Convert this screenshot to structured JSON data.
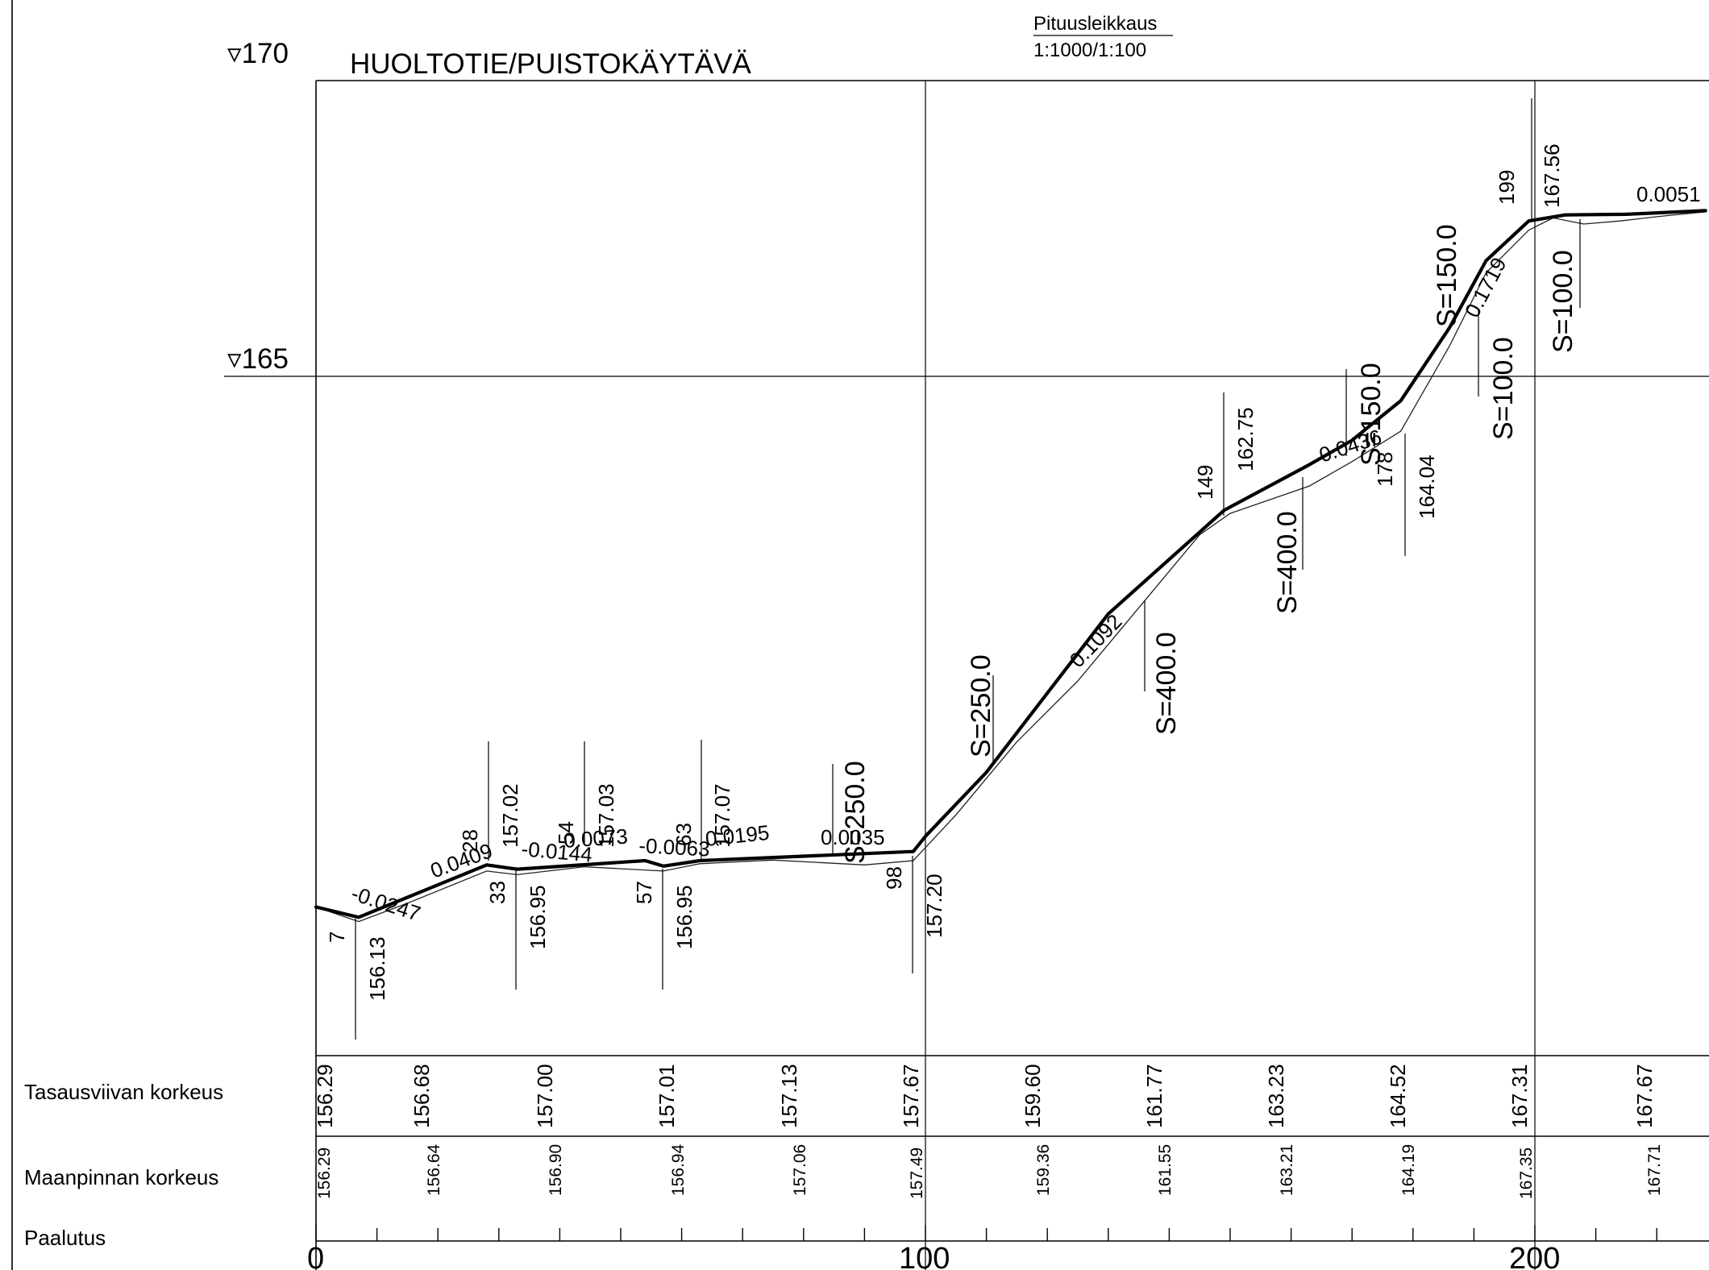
{
  "drawing_title": "HUOLTOTIE/PUISTOKÄYTÄVÄ",
  "stamp": {
    "line1": "Pituusleikkaus",
    "line2": "1:1000/1:100"
  },
  "elevation_refs": [
    "▿170",
    "▿165"
  ],
  "row_labels": {
    "design": "Tasausviivan korkeus",
    "ground": "Maanpinnan korkeus",
    "chainage": "Paalutus"
  },
  "chainage_labels": [
    "0",
    "100",
    "200"
  ],
  "design_heights": [
    "156.29",
    "156.68",
    "157.00",
    "157.01",
    "157.13",
    "157.67",
    "159.60",
    "161.77",
    "163.23",
    "164.52",
    "167.31",
    "167.67"
  ],
  "ground_heights": [
    "156.29",
    "156.64",
    "156.90",
    "156.94",
    "157.06",
    "157.49",
    "159.36",
    "161.55",
    "163.21",
    "164.19",
    "167.35",
    "167.71"
  ],
  "break_stations": [
    "7",
    "28",
    "33",
    "54",
    "57",
    "63",
    "98",
    "149",
    "178",
    "199"
  ],
  "break_elevations": [
    "156.13",
    "157.02",
    "156.95",
    "157.03",
    "156.95",
    "157.07",
    "157.20",
    "162.75",
    "164.04",
    "167.56"
  ],
  "grades": [
    "-0.0247",
    "0.0409",
    "-0.0144",
    "0.0073",
    "-0.0063",
    "0.0195",
    "0.0035",
    "0.1092",
    "0.0436",
    "0.1719",
    "0.0051"
  ],
  "vertical_curves": [
    "S=250.0",
    "S=250.0",
    "S=400.0",
    "S=400.0",
    "S=150.0",
    "S=150.0",
    "S=100.0",
    "S=100.0"
  ],
  "chart_data": {
    "type": "line",
    "xlabel": "Paalutus",
    "xlim": [
      0,
      228
    ],
    "ylim": [
      153.0,
      171.3
    ],
    "series": [
      {
        "x": [
          0,
          7,
          28,
          33,
          54,
          57,
          63,
          98,
          100,
          110,
          120,
          130,
          149,
          163,
          170,
          178,
          186,
          192,
          199,
          205,
          215,
          228
        ],
        "values": [
          156.29,
          156.12,
          156.98,
          156.91,
          157.05,
          156.96,
          157.05,
          157.2,
          157.45,
          158.5,
          159.8,
          161.1,
          162.8,
          163.55,
          163.95,
          164.6,
          165.8,
          166.9,
          167.55,
          167.65,
          167.66,
          167.72
        ]
      },
      {
        "x": [
          0,
          7,
          15,
          28,
          33,
          44,
          57,
          63,
          75,
          90,
          98,
          105,
          115,
          125,
          135,
          145,
          150,
          163,
          170,
          178,
          186,
          192,
          199,
          203,
          208,
          214,
          220,
          228
        ],
        "values": [
          156.29,
          156.05,
          156.35,
          156.88,
          156.82,
          156.95,
          156.88,
          157.0,
          157.06,
          156.98,
          157.05,
          157.8,
          159.0,
          160.0,
          161.2,
          162.4,
          162.75,
          163.2,
          163.6,
          164.1,
          165.5,
          166.7,
          167.4,
          167.6,
          167.5,
          167.55,
          167.62,
          167.7
        ]
      }
    ]
  }
}
